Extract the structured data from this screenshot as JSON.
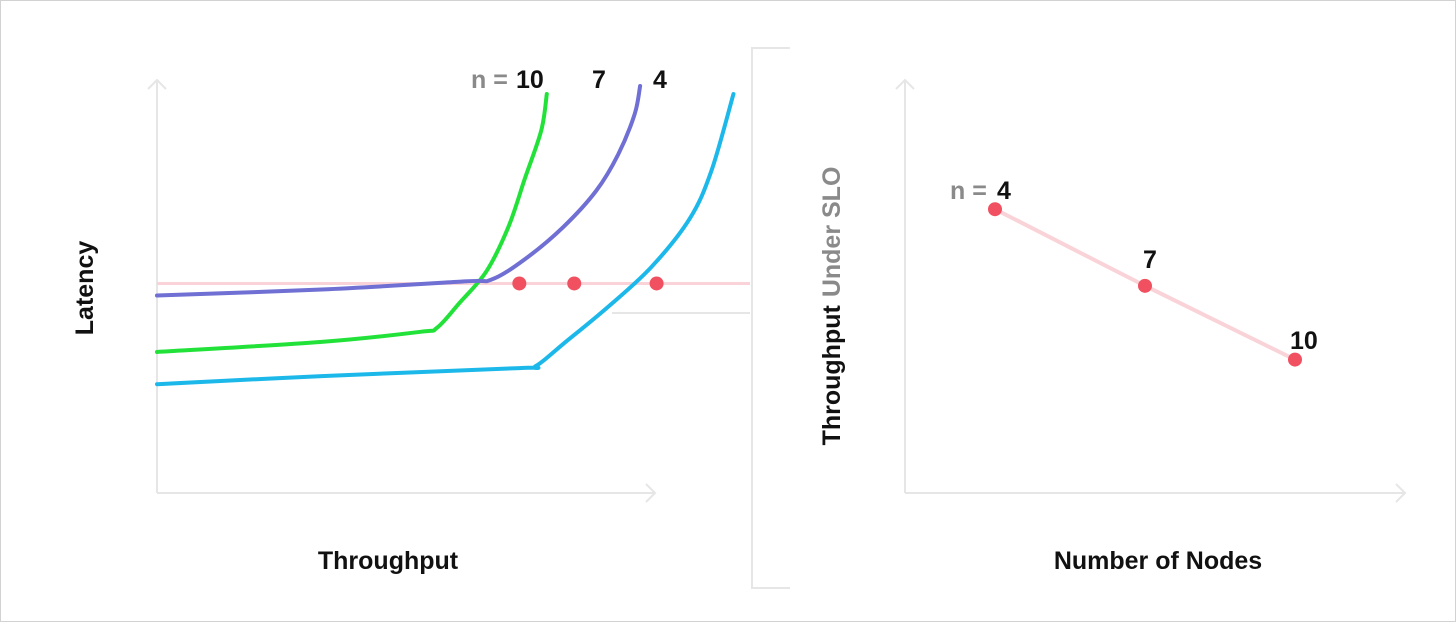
{
  "chart_data": [
    {
      "type": "line",
      "xlabel": "Throughput",
      "ylabel": "Latency",
      "legend_prefix": "n = ",
      "slo_line": {
        "y": 5.2,
        "color": "#f9d3d8"
      },
      "axis_color": "#e6e6e6",
      "xlim": [
        0,
        10
      ],
      "ylim": [
        0,
        10
      ],
      "series": [
        {
          "name": "10",
          "color": "#22e23a",
          "points": [
            [
              0,
              3.5
            ],
            [
              3,
              3.75
            ],
            [
              4.8,
              4.0
            ],
            [
              5.1,
              4.1
            ],
            [
              5.5,
              4.7
            ],
            [
              6.0,
              5.5
            ],
            [
              6.4,
              6.6
            ],
            [
              6.7,
              7.8
            ],
            [
              7.0,
              9.0
            ],
            [
              7.1,
              9.9
            ]
          ],
          "slo_x": 6.6
        },
        {
          "name": "7",
          "color": "#6f6fd4",
          "points": [
            [
              0,
              4.9
            ],
            [
              3,
              5.05
            ],
            [
              5.6,
              5.25
            ],
            [
              6.1,
              5.3
            ],
            [
              6.7,
              5.8
            ],
            [
              7.4,
              6.6
            ],
            [
              8.0,
              7.5
            ],
            [
              8.4,
              8.4
            ],
            [
              8.7,
              9.4
            ],
            [
              8.8,
              10.1
            ]
          ],
          "slo_x": 7.6
        },
        {
          "name": "4",
          "color": "#1cb8ea",
          "points": [
            [
              0,
              2.7
            ],
            [
              3,
              2.9
            ],
            [
              6.6,
              3.1
            ],
            [
              6.9,
              3.15
            ],
            [
              7.4,
              3.7
            ],
            [
              8.2,
              4.6
            ],
            [
              9.0,
              5.6
            ],
            [
              9.7,
              6.8
            ],
            [
              10.1,
              8.0
            ],
            [
              10.5,
              9.9
            ]
          ],
          "slo_x": 9.1
        }
      ],
      "marker_color": "#f0505f"
    },
    {
      "type": "line",
      "xlabel": "Number of Nodes",
      "ylabel_main": "Throughput",
      "ylabel_secondary": "Under SLO",
      "point_prefix": "n = ",
      "x": [
        4,
        7,
        10
      ],
      "y": [
        10,
        7.3,
        4.7
      ],
      "point_labels": [
        "4",
        "7",
        "10"
      ],
      "line_color": "#f9d3d8",
      "marker_color": "#f0505f",
      "xlim": [
        2.2,
        12.2
      ],
      "ylim": [
        0,
        14.2
      ]
    }
  ]
}
